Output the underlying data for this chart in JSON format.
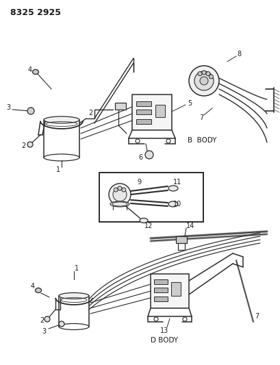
{
  "title": "8325 2925",
  "bg_color": "#ffffff",
  "line_color": "#2a2a2a",
  "text_color": "#1a1a1a",
  "b_body_label": "B  BODY",
  "d_body_label": "D BODY",
  "figsize": [
    4.1,
    5.33
  ],
  "dpi": 100
}
